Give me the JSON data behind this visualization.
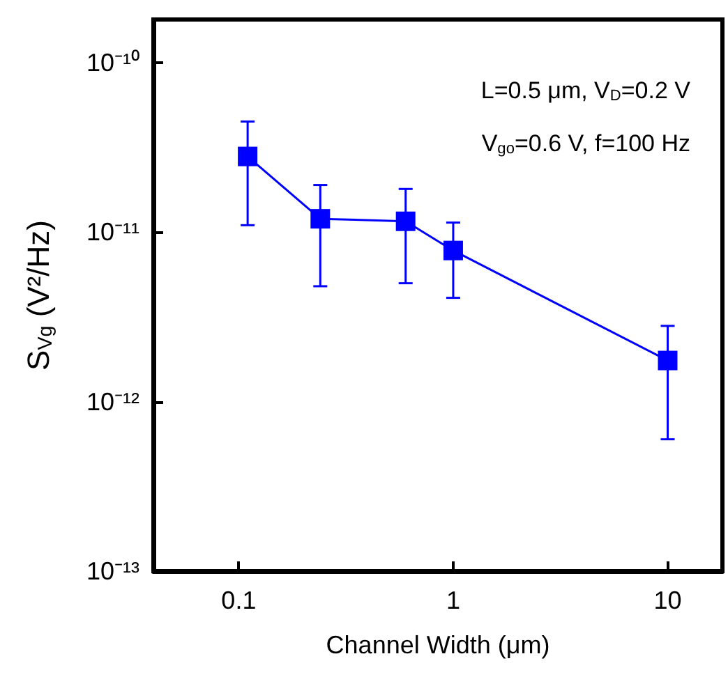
{
  "chart_data": {
    "type": "line",
    "xlabel": "Channel Width (μm)",
    "ylabel": "S$_{Vg}$ (V²/Hz)",
    "annotations": [
      "L=0.5 μm, V$_{D}$=0.2 V",
      "V$_{go}$=0.6 V, f=100 Hz"
    ],
    "x": [
      0.11,
      0.24,
      0.6,
      1,
      10
    ],
    "series": [
      {
        "color": "#0000ff",
        "values": [
          2.8e-11,
          1.2e-11,
          1.16e-11,
          7.8e-12,
          1.75e-12
        ],
        "errors": [
          [
            1.1e-11,
            4.5e-11
          ],
          [
            4.8e-12,
            1.9e-11
          ],
          [
            5e-12,
            1.8e-11
          ],
          [
            4.1e-12,
            1.14e-11
          ],
          [
            6e-13,
            2.8e-12
          ]
        ]
      }
    ],
    "log": "xy",
    "xlim": [
      0.04,
      18
    ],
    "xticks": [
      0.1,
      1,
      10
    ],
    "ylim": [
      1e-13,
      1.8e-10
    ],
    "yticks": [
      {
        "value": 1e-13,
        "label": "10⁻¹³"
      },
      {
        "value": 1e-12,
        "label": "10⁻¹²"
      },
      {
        "value": 1e-11,
        "label": "10⁻¹¹"
      },
      {
        "value": 1e-10,
        "label": "10⁻¹⁰"
      }
    ],
    "marker": "square",
    "line_style": "solid",
    "grid": false
  }
}
